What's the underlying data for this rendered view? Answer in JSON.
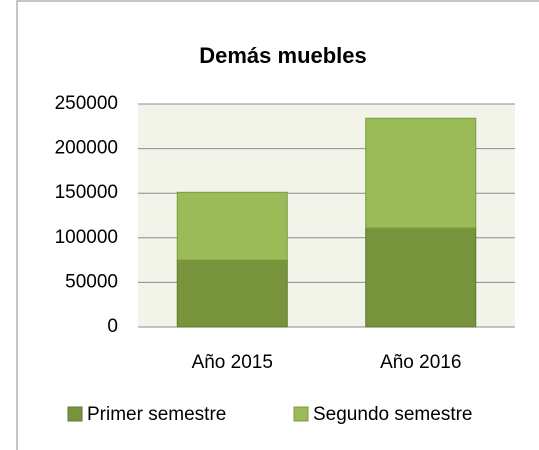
{
  "chart_data": {
    "type": "stacked_bar",
    "title": "Demás muebles",
    "categories": [
      "Año 2015",
      "Año 2016"
    ],
    "series": [
      {
        "name": "Primer semestre",
        "color": "#77933c",
        "values": [
          75000,
          111000
        ]
      },
      {
        "name": "Segundo semestre",
        "color": "#9bbb59",
        "values": [
          76000,
          123000
        ]
      }
    ],
    "ylim": [
      0,
      250000
    ],
    "yticks": [
      0,
      50000,
      100000,
      150000,
      200000,
      250000
    ],
    "grid": true,
    "legend": "bottom"
  }
}
